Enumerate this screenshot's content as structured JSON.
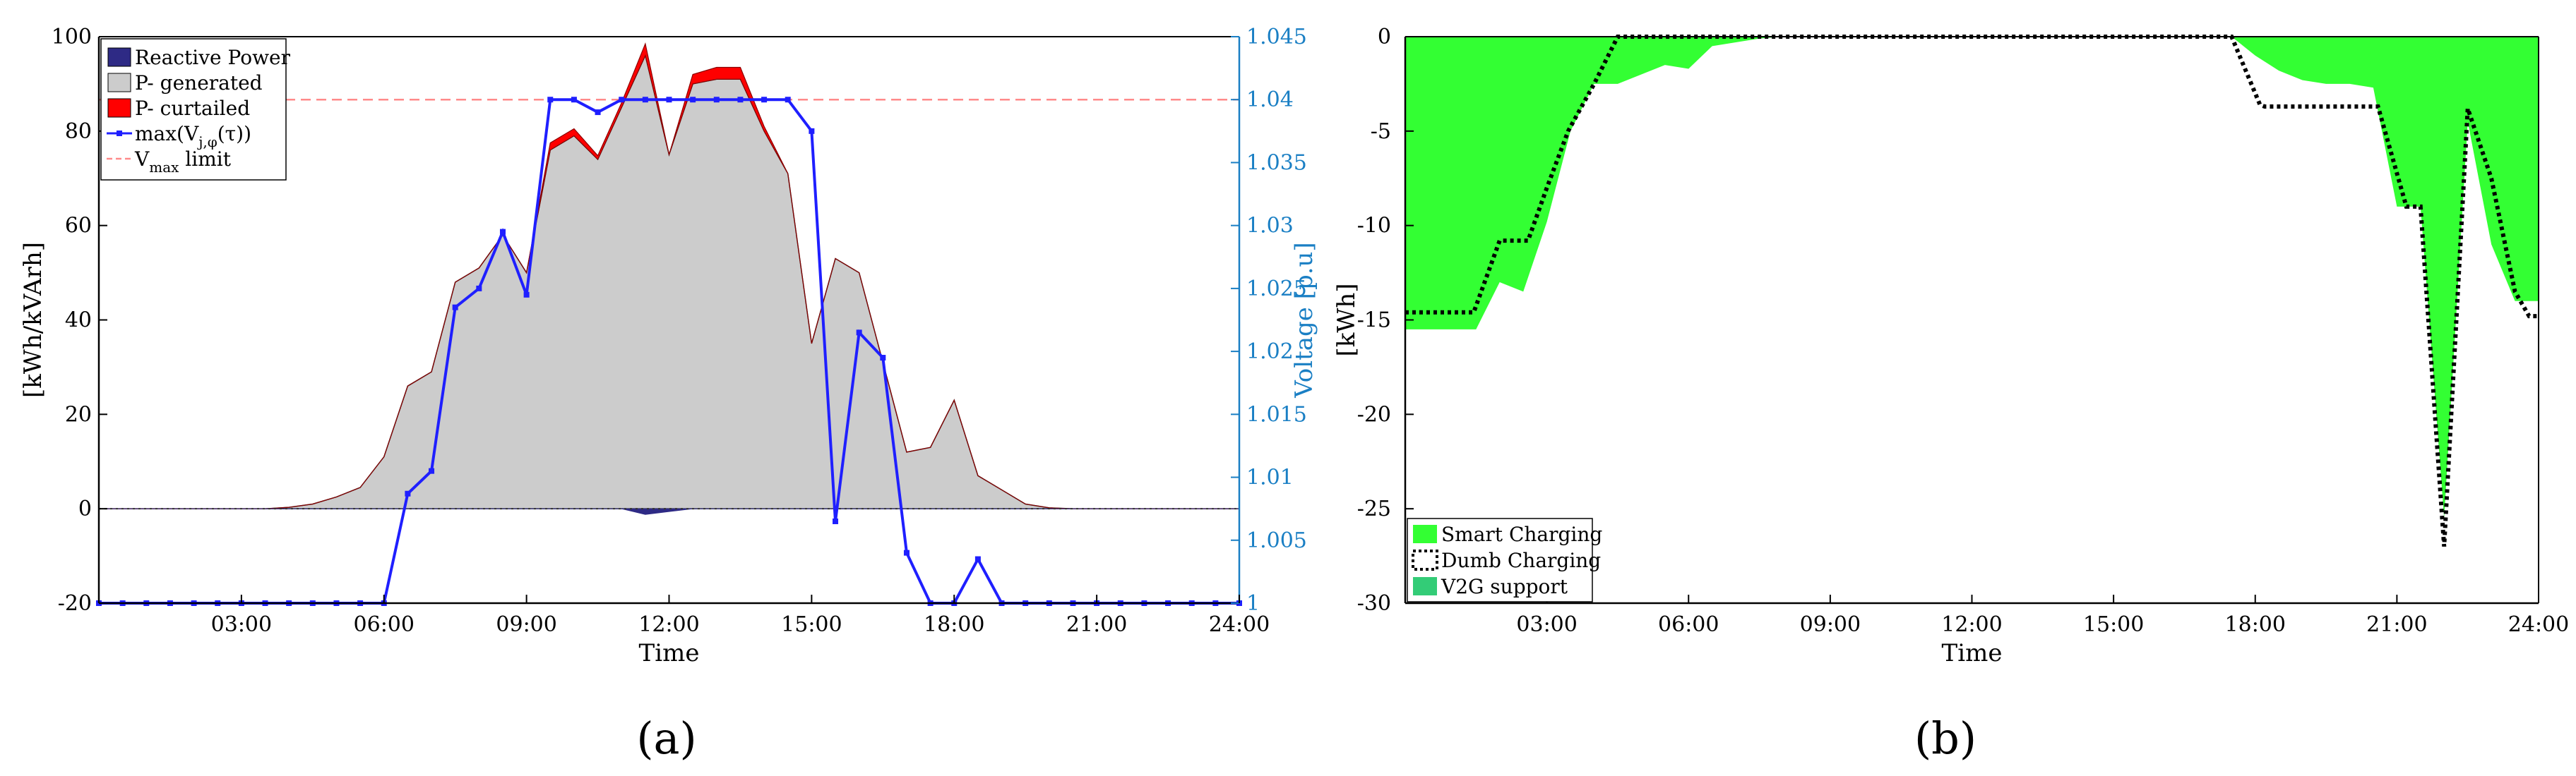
{
  "chart_data": [
    {
      "panel": "(a)",
      "type": "area",
      "xlabel": "Time",
      "ylabel": "[kWh/kVArh]",
      "y2label": "Voltage [p.u]",
      "xlim": [
        0,
        24
      ],
      "ylim": [
        -20,
        100
      ],
      "y2lim": [
        1.0,
        1.045
      ],
      "xticks": [
        "03:00",
        "06:00",
        "09:00",
        "12:00",
        "15:00",
        "18:00",
        "21:00",
        "24:00"
      ],
      "yticks": [
        "-20",
        "0",
        "20",
        "40",
        "60",
        "80",
        "100"
      ],
      "y2ticks": [
        "1",
        "1.005",
        "1.01",
        "1.015",
        "1.02",
        "1.025",
        "1.03",
        "1.035",
        "1.04",
        "1.045"
      ],
      "grid": false,
      "legend_position": "top-left",
      "colors": {
        "reactive": "#2e2a85",
        "generated": "#cccccc",
        "curtailed": "#ff0000",
        "voltage": "#1f1fff",
        "vmax": "#ff8a8a",
        "right_axis": "#1a7fc4"
      },
      "legend": [
        {
          "key": "reactive",
          "label": "Reactive Power"
        },
        {
          "key": "generated",
          "label": "P- generated"
        },
        {
          "key": "curtailed",
          "label": "P- curtailed"
        },
        {
          "key": "voltage",
          "label": "max(V",
          "sub": "j,φ",
          "after": "(τ))"
        },
        {
          "key": "vmax",
          "label": "V",
          "sub": "max",
          "after": " limit"
        }
      ],
      "vmax_limit": 1.04,
      "x": [
        0,
        0.5,
        1,
        1.5,
        2,
        2.5,
        3,
        3.5,
        4,
        4.5,
        5,
        5.5,
        6,
        6.5,
        7,
        7.5,
        8,
        8.5,
        9,
        9.5,
        10,
        10.5,
        11,
        11.5,
        12,
        12.5,
        13,
        13.5,
        14,
        14.5,
        15,
        15.5,
        16,
        16.5,
        17,
        17.5,
        18,
        18.5,
        19,
        19.5,
        20,
        20.5,
        21,
        21.5,
        22,
        22.5,
        23,
        23.5,
        24
      ],
      "series": [
        {
          "key": "generated",
          "values": [
            0,
            0,
            0,
            0,
            0,
            0,
            0,
            0,
            0.3,
            1,
            2.5,
            4.5,
            11,
            26,
            29,
            48,
            51,
            58,
            50,
            76,
            79,
            74,
            85,
            96,
            75,
            90,
            91,
            91,
            80,
            71,
            35,
            53,
            50,
            31,
            12,
            13,
            23,
            7,
            4,
            1,
            0.2,
            0,
            0,
            0,
            0,
            0,
            0,
            0,
            0
          ]
        },
        {
          "key": "curtailed",
          "values": [
            0,
            0,
            0,
            0,
            0,
            0,
            0,
            0,
            0,
            0,
            0,
            0,
            0,
            0,
            0,
            0,
            0,
            0,
            0,
            1.5,
            1.5,
            0.8,
            1,
            2.5,
            0,
            2,
            2.5,
            2.5,
            1,
            0,
            0,
            0,
            0,
            0,
            0,
            0,
            0,
            0,
            0,
            0,
            0,
            0,
            0,
            0,
            0,
            0,
            0,
            0,
            0
          ]
        },
        {
          "key": "reactive",
          "values": [
            0,
            0,
            0,
            0,
            0,
            0,
            0,
            0,
            0,
            0,
            0,
            0,
            0,
            0,
            0,
            0,
            0,
            0,
            0,
            0,
            0,
            0,
            0,
            -1.2,
            -0.6,
            0,
            0,
            0,
            0,
            0,
            0,
            0,
            0,
            0,
            0,
            0,
            0,
            0,
            0,
            0,
            0,
            0,
            0,
            0,
            0,
            0,
            0,
            0,
            0
          ]
        },
        {
          "key": "voltage",
          "values": [
            1.0,
            1.0,
            1.0,
            1.0,
            1.0,
            1.0,
            1.0,
            1.0,
            1.0,
            1.0,
            1.0,
            1.0,
            1.0,
            1.0087,
            1.0105,
            1.0235,
            1.025,
            1.0295,
            1.0245,
            1.04,
            1.04,
            1.039,
            1.04,
            1.04,
            1.04,
            1.04,
            1.04,
            1.04,
            1.04,
            1.04,
            1.0375,
            1.0065,
            1.0215,
            1.0195,
            1.004,
            1.0,
            1.0,
            1.0035,
            1.0,
            1.0,
            1.0,
            1.0,
            1.0,
            1.0,
            1.0,
            1.0,
            1.0,
            1.0,
            1.0
          ]
        }
      ]
    },
    {
      "panel": "(b)",
      "type": "area",
      "xlabel": "Time",
      "ylabel": "[kWh]",
      "xlim": [
        0,
        24
      ],
      "ylim": [
        -30,
        0
      ],
      "xticks": [
        "03:00",
        "06:00",
        "09:00",
        "12:00",
        "15:00",
        "18:00",
        "21:00",
        "24:00"
      ],
      "yticks": [
        "-30",
        "-25",
        "-20",
        "-15",
        "-10",
        "-5",
        "0"
      ],
      "grid": false,
      "legend_position": "bottom-left",
      "colors": {
        "smart": "#33ff33",
        "dumb": "#000000",
        "v2g": "#33cc77"
      },
      "legend": [
        {
          "key": "smart",
          "label": "Smart Charging"
        },
        {
          "key": "dumb",
          "label": "Dumb Charging"
        },
        {
          "key": "v2g",
          "label": "V2G support"
        }
      ],
      "series": [
        {
          "key": "smart",
          "x": [
            0,
            0.5,
            1,
            1.5,
            2,
            2.5,
            3,
            3.5,
            4,
            4.5,
            5,
            5.5,
            6,
            6.5,
            7,
            7.5,
            8,
            8.5,
            9,
            9.5,
            10,
            10.5,
            11,
            11.5,
            12,
            12.5,
            13,
            13.5,
            14,
            14.5,
            15,
            15.5,
            16,
            16.5,
            17,
            17.5,
            18,
            18.5,
            19,
            19.5,
            20,
            20.5,
            21,
            21.5,
            22,
            22.5,
            23,
            23.5,
            24
          ],
          "values": [
            -15.5,
            -15.5,
            -15.5,
            -15.5,
            -13,
            -13.5,
            -9.8,
            -5,
            -2.5,
            -2.5,
            -2,
            -1.5,
            -1.7,
            -0.5,
            -0.3,
            -0.1,
            0,
            0,
            0,
            0,
            0,
            0,
            0,
            0,
            0,
            0,
            0,
            0,
            0,
            0,
            0,
            0,
            0,
            0,
            0,
            0,
            -1,
            -1.8,
            -2.3,
            -2.5,
            -2.5,
            -2.7,
            -9,
            -9,
            -25.5,
            -4.5,
            -11,
            -14,
            -14
          ]
        },
        {
          "key": "dumb",
          "x": [
            0,
            1.45,
            1.45,
            2,
            2.6,
            2.6,
            3.0,
            3.45,
            4.0,
            4.3,
            4.5,
            7.0,
            17.5,
            18.1,
            18.2,
            20.6,
            21.2,
            21.2,
            21.5,
            22,
            22.5,
            23.0,
            23.5,
            23.8,
            24
          ],
          "values": [
            -14.6,
            -14.6,
            -14.6,
            -10.8,
            -10.8,
            -10.8,
            -8,
            -5,
            -2.5,
            -1,
            0,
            0,
            0,
            -3.6,
            -3.7,
            -3.7,
            -9,
            -9,
            -9,
            -27,
            -3.8,
            -7.5,
            -13.5,
            -14.8,
            -14.8
          ]
        },
        {
          "key": "v2g",
          "values": []
        }
      ]
    }
  ],
  "panel_labels": {
    "a": "(a)",
    "b": "(b)"
  }
}
